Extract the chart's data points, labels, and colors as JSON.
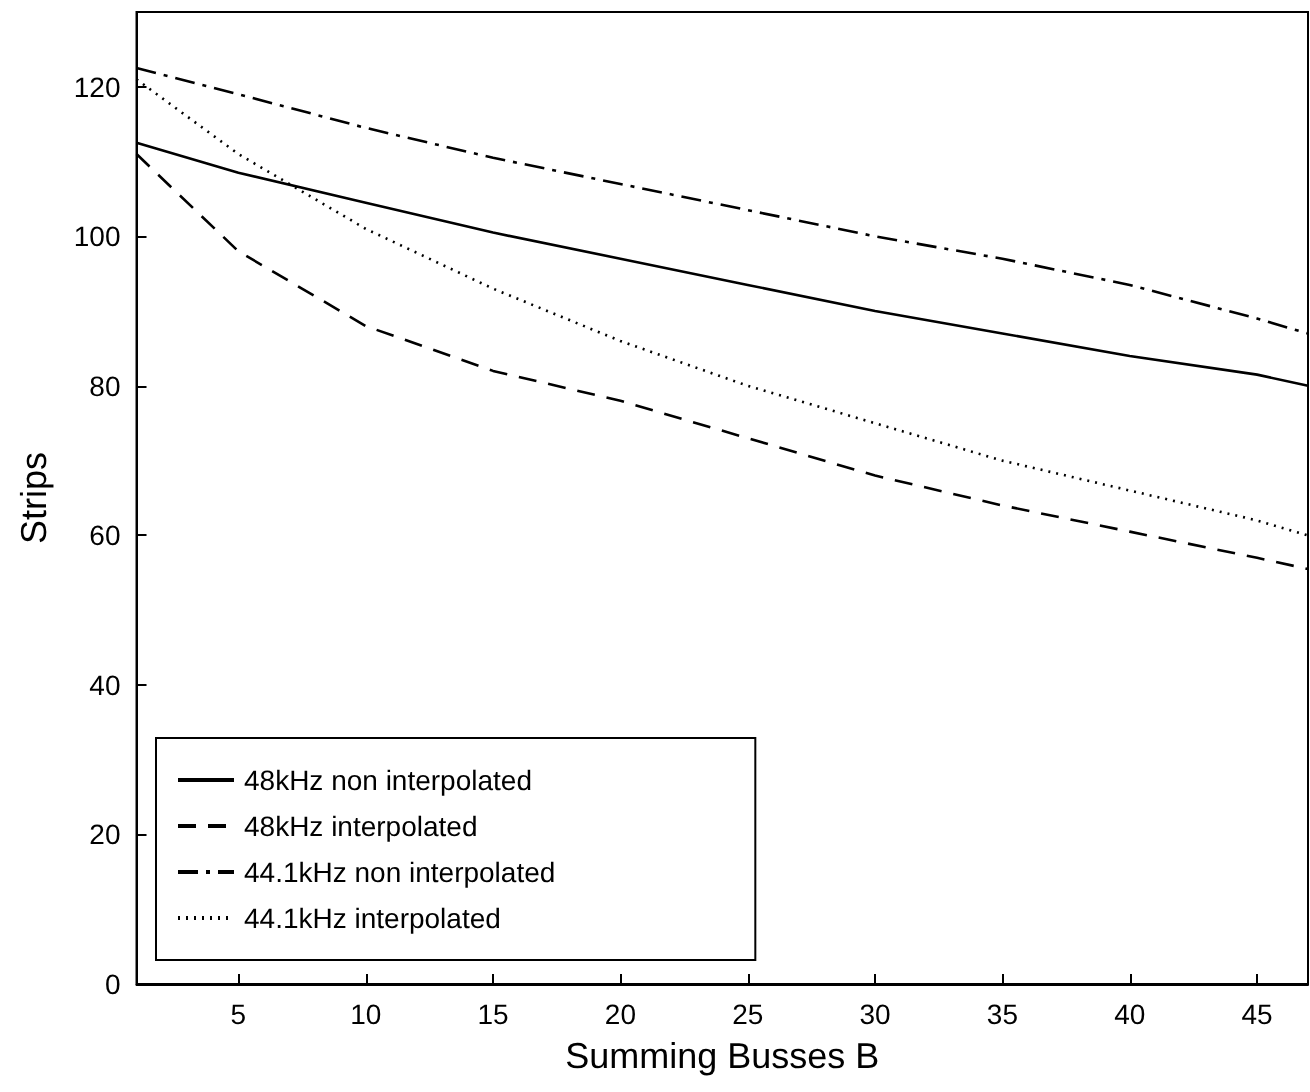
{
  "chart_data": {
    "type": "line",
    "xlabel": "Summing Busses B",
    "ylabel": "Strips",
    "x": [
      1,
      5,
      10,
      15,
      20,
      25,
      30,
      35,
      40,
      45,
      47
    ],
    "series": [
      {
        "name": "48kHz non interpolated",
        "color": "#000000",
        "line_style": "solid",
        "values": [
          112.5,
          108.5,
          104.5,
          100.5,
          97,
          93.5,
          90,
          87,
          84,
          81.5,
          80
        ]
      },
      {
        "name": "48kHz interpolated",
        "color": "#000000",
        "line_style": "dashed",
        "values": [
          111,
          98,
          88,
          82,
          78,
          73,
          68,
          64,
          60.5,
          57,
          55.5
        ]
      },
      {
        "name": "44.1kHz non interpolated",
        "color": "#000000",
        "line_style": "dashdot",
        "values": [
          122.5,
          119,
          114.5,
          110.5,
          107,
          103.5,
          100,
          97,
          93.5,
          89,
          87
        ]
      },
      {
        "name": "44.1kHz interpolated",
        "color": "#000000",
        "line_style": "dotted",
        "values": [
          121,
          111,
          101,
          93,
          86,
          80,
          75,
          70,
          66,
          62,
          60
        ]
      }
    ],
    "xlim": [
      1,
      47
    ],
    "xticks": [
      5,
      10,
      15,
      20,
      25,
      30,
      35,
      40,
      45
    ],
    "ylim": [
      0,
      130
    ],
    "yticks": [
      0,
      20,
      40,
      60,
      80,
      100,
      120
    ],
    "grid": false,
    "legend": "bottom left",
    "marker": "none"
  }
}
